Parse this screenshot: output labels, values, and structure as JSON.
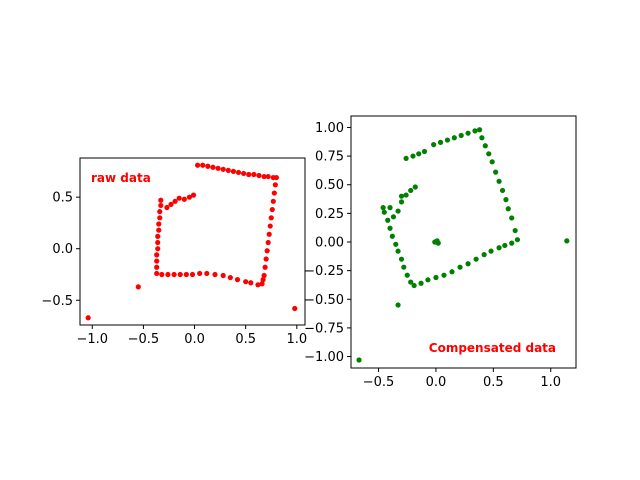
{
  "chart_data": [
    {
      "type": "scatter",
      "annotation": "raw data",
      "annotation_color": "#ff0000",
      "annotation_position": "top-left",
      "xlim": [
        -1.12,
        1.08
      ],
      "ylim": [
        -0.74,
        0.88
      ],
      "xticks": [
        -1.0,
        -0.5,
        0.0,
        0.5,
        1.0
      ],
      "xtick_labels": [
        "−1.0",
        "−0.5",
        "0.0",
        "0.5",
        "1.0"
      ],
      "yticks": [
        -0.5,
        0.0,
        0.5
      ],
      "ytick_labels": [
        "−0.5",
        "0.0",
        "0.5"
      ],
      "grid": false,
      "marker_color": "#ff0000",
      "points": [
        [
          0.03,
          0.81
        ],
        [
          0.08,
          0.81
        ],
        [
          0.13,
          0.8
        ],
        [
          0.18,
          0.79
        ],
        [
          0.23,
          0.78
        ],
        [
          0.28,
          0.77
        ],
        [
          0.33,
          0.76
        ],
        [
          0.38,
          0.75
        ],
        [
          0.43,
          0.74
        ],
        [
          0.48,
          0.73
        ],
        [
          0.53,
          0.72
        ],
        [
          0.58,
          0.72
        ],
        [
          0.63,
          0.71
        ],
        [
          0.68,
          0.7
        ],
        [
          0.72,
          0.7
        ],
        [
          0.77,
          0.69
        ],
        [
          0.8,
          0.69
        ],
        [
          0.79,
          0.62
        ],
        [
          0.78,
          0.54
        ],
        [
          0.77,
          0.46
        ],
        [
          0.76,
          0.38
        ],
        [
          0.75,
          0.3
        ],
        [
          0.74,
          0.22
        ],
        [
          0.73,
          0.14
        ],
        [
          0.72,
          0.06
        ],
        [
          0.71,
          -0.02
        ],
        [
          0.7,
          -0.1
        ],
        [
          0.69,
          -0.18
        ],
        [
          0.68,
          -0.26
        ],
        [
          0.67,
          -0.3
        ],
        [
          0.66,
          -0.34
        ],
        [
          0.62,
          -0.35
        ],
        [
          0.55,
          -0.33
        ],
        [
          0.5,
          -0.32
        ],
        [
          0.42,
          -0.3
        ],
        [
          0.35,
          -0.28
        ],
        [
          0.28,
          -0.26
        ],
        [
          0.2,
          -0.25
        ],
        [
          0.12,
          -0.24
        ],
        [
          0.05,
          -0.24
        ],
        [
          -0.02,
          -0.25
        ],
        [
          -0.08,
          -0.25
        ],
        [
          -0.14,
          -0.25
        ],
        [
          -0.2,
          -0.25
        ],
        [
          -0.26,
          -0.25
        ],
        [
          -0.32,
          -0.25
        ],
        [
          -0.37,
          -0.24
        ],
        [
          -0.37,
          -0.18
        ],
        [
          -0.37,
          -0.12
        ],
        [
          -0.37,
          -0.06
        ],
        [
          -0.36,
          0.0
        ],
        [
          -0.36,
          0.06
        ],
        [
          -0.36,
          0.12
        ],
        [
          -0.35,
          0.18
        ],
        [
          -0.35,
          0.24
        ],
        [
          -0.34,
          0.3
        ],
        [
          -0.34,
          0.36
        ],
        [
          -0.33,
          0.42
        ],
        [
          -0.33,
          0.47
        ],
        [
          -0.27,
          0.4
        ],
        [
          -0.23,
          0.43
        ],
        [
          -0.19,
          0.46
        ],
        [
          -0.15,
          0.49
        ],
        [
          -0.1,
          0.48
        ],
        [
          -0.05,
          0.5
        ],
        [
          -0.01,
          0.52
        ],
        [
          -1.04,
          -0.67
        ],
        [
          -0.55,
          -0.37
        ],
        [
          0.98,
          -0.58
        ]
      ]
    },
    {
      "type": "scatter",
      "annotation": "Compensated data",
      "annotation_color": "#ff0000",
      "annotation_position": "bottom-right",
      "xlim": [
        -0.74,
        1.22
      ],
      "ylim": [
        -1.1,
        1.1
      ],
      "xticks": [
        -0.5,
        0.0,
        0.5,
        1.0
      ],
      "xtick_labels": [
        "−0.5",
        "0.0",
        "0.5",
        "1.0"
      ],
      "yticks": [
        -1.0,
        -0.75,
        -0.5,
        -0.25,
        0.0,
        0.25,
        0.5,
        0.75,
        1.0
      ],
      "ytick_labels": [
        "−1.00",
        "−0.75",
        "−0.50",
        "−0.25",
        "0.00",
        "0.25",
        "0.50",
        "0.75",
        "1.00"
      ],
      "grid": false,
      "marker_color": "#008000",
      "points": [
        [
          -0.02,
          0.85
        ],
        [
          0.04,
          0.87
        ],
        [
          0.1,
          0.89
        ],
        [
          0.16,
          0.91
        ],
        [
          0.22,
          0.93
        ],
        [
          0.28,
          0.95
        ],
        [
          0.34,
          0.97
        ],
        [
          0.38,
          0.98
        ],
        [
          -0.1,
          0.79
        ],
        [
          -0.15,
          0.77
        ],
        [
          -0.2,
          0.75
        ],
        [
          -0.26,
          0.73
        ],
        [
          0.4,
          0.91
        ],
        [
          0.43,
          0.84
        ],
        [
          0.46,
          0.77
        ],
        [
          0.49,
          0.7
        ],
        [
          0.52,
          0.61
        ],
        [
          0.55,
          0.53
        ],
        [
          0.58,
          0.45
        ],
        [
          0.61,
          0.37
        ],
        [
          0.63,
          0.29
        ],
        [
          0.66,
          0.21
        ],
        [
          0.69,
          0.1
        ],
        [
          0.71,
          0.02
        ],
        [
          0.66,
          -0.01
        ],
        [
          0.6,
          -0.03
        ],
        [
          0.55,
          -0.05
        ],
        [
          0.48,
          -0.08
        ],
        [
          0.42,
          -0.11
        ],
        [
          0.35,
          -0.15
        ],
        [
          0.28,
          -0.19
        ],
        [
          0.21,
          -0.22
        ],
        [
          0.14,
          -0.26
        ],
        [
          0.07,
          -0.29
        ],
        [
          0.0,
          -0.31
        ],
        [
          -0.07,
          -0.33
        ],
        [
          -0.13,
          -0.36
        ],
        [
          -0.19,
          -0.38
        ],
        [
          -0.22,
          -0.35
        ],
        [
          -0.25,
          -0.29
        ],
        [
          -0.28,
          -0.22
        ],
        [
          -0.3,
          -0.15
        ],
        [
          -0.33,
          -0.08
        ],
        [
          -0.35,
          -0.02
        ],
        [
          -0.38,
          0.05
        ],
        [
          -0.4,
          0.12
        ],
        [
          -0.42,
          0.19
        ],
        [
          -0.45,
          0.26
        ],
        [
          -0.46,
          0.3
        ],
        [
          -0.4,
          0.3
        ],
        [
          -0.37,
          0.22
        ],
        [
          -0.33,
          0.27
        ],
        [
          -0.3,
          0.35
        ],
        [
          -0.3,
          0.4
        ],
        [
          -0.26,
          0.41
        ],
        [
          -0.22,
          0.45
        ],
        [
          -0.18,
          0.48
        ],
        [
          0.0,
          0.0
        ],
        [
          0.01,
          0.01
        ],
        [
          0.02,
          -0.01
        ],
        [
          -0.01,
          0.0
        ],
        [
          -0.67,
          -1.03
        ],
        [
          -0.33,
          -0.55
        ],
        [
          1.14,
          0.01
        ]
      ]
    }
  ]
}
